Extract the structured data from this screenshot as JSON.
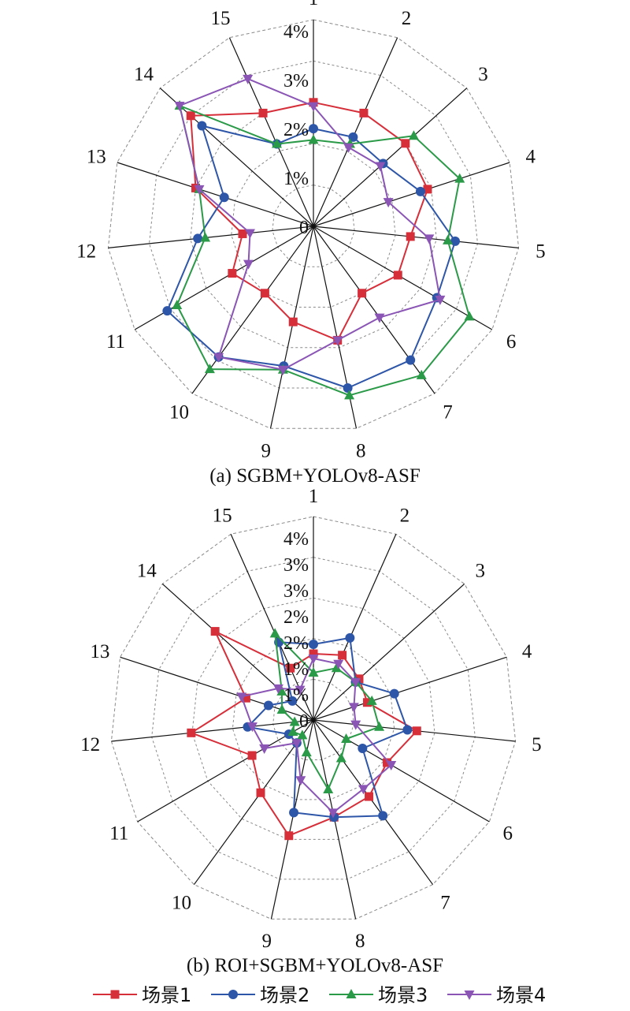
{
  "colors": {
    "s1": "#d62f3a",
    "s2": "#2e56a8",
    "s3": "#2b9a48",
    "s4": "#8a55b5",
    "grid": "#8a8a8a",
    "spoke": "#111111"
  },
  "legend": [
    {
      "label": "场景1",
      "marker": "square"
    },
    {
      "label": "场景2",
      "marker": "circle"
    },
    {
      "label": "场景3",
      "marker": "triangle-up"
    },
    {
      "label": "场景4",
      "marker": "triangle-down"
    }
  ],
  "chart_data": [
    {
      "type": "radar",
      "caption": "(a) SGBM+YOLOv8-ASF",
      "categories": [
        "1",
        "2",
        "3",
        "4",
        "5",
        "6",
        "7",
        "8",
        "9",
        "10",
        "11",
        "12",
        "13",
        "14",
        "15"
      ],
      "radial_tick_labels": [
        "0",
        "1%",
        "2%",
        "3%",
        "4%"
      ],
      "rmax": 5.5,
      "series": [
        {
          "name": "场景1",
          "values": [
            3.3,
            3.3,
            3.3,
            3.2,
            2.6,
            2.6,
            2.2,
            3.1,
            2.6,
            2.2,
            2.5,
            1.9,
            3.3,
            4.4,
            3.3
          ]
        },
        {
          "name": "场景2",
          "values": [
            2.6,
            2.6,
            2.5,
            3.0,
            3.8,
            3.8,
            4.4,
            4.4,
            3.8,
            4.3,
            4.5,
            3.1,
            2.5,
            4.0,
            2.4
          ]
        },
        {
          "name": "场景3",
          "values": [
            2.3,
            2.4,
            3.6,
            4.1,
            3.6,
            4.8,
            4.9,
            4.6,
            3.9,
            4.7,
            4.2,
            2.9,
            3.2,
            4.8,
            2.4
          ]
        },
        {
          "name": "场景4",
          "values": [
            3.2,
            2.3,
            2.4,
            2.1,
            3.1,
            3.9,
            3.0,
            3.1,
            3.9,
            4.3,
            2.0,
            1.7,
            3.2,
            4.8,
            4.3
          ]
        }
      ]
    },
    {
      "type": "radar",
      "caption": "(b) ROI+SGBM+YOLOv8-ASF",
      "categories": [
        "1",
        "2",
        "3",
        "4",
        "5",
        "6",
        "7",
        "8",
        "9",
        "10",
        "11",
        "12",
        "13",
        "14",
        "15"
      ],
      "radial_tick_labels": [
        "0",
        "1%",
        "1%",
        "2%",
        "2%",
        "3%",
        "3%",
        "4%"
      ],
      "rmax": 4.3,
      "series": [
        {
          "name": "场景1",
          "values": [
            1.4,
            1.5,
            1.3,
            1.2,
            2.2,
            1.8,
            2.0,
            2.1,
            2.5,
            1.9,
            1.5,
            2.6,
            1.5,
            2.8,
            1.2
          ]
        },
        {
          "name": "场景2",
          "values": [
            1.6,
            1.9,
            1.2,
            1.8,
            2.0,
            1.2,
            2.5,
            2.1,
            2.0,
            0.6,
            0.6,
            1.4,
            1.0,
            0.6,
            1.8
          ]
        },
        {
          "name": "场景3",
          "values": [
            1.0,
            1.2,
            1.2,
            1.3,
            1.4,
            0.8,
            1.0,
            1.5,
            0.7,
            0.4,
            0.5,
            0.4,
            0.7,
            0.9,
            2.0
          ]
        },
        {
          "name": "场景4",
          "values": [
            1.3,
            1.3,
            1.2,
            0.9,
            0.9,
            1.9,
            1.8,
            2.0,
            1.3,
            0.6,
            1.2,
            1.3,
            1.6,
            1.0,
            0.7
          ]
        }
      ]
    }
  ]
}
